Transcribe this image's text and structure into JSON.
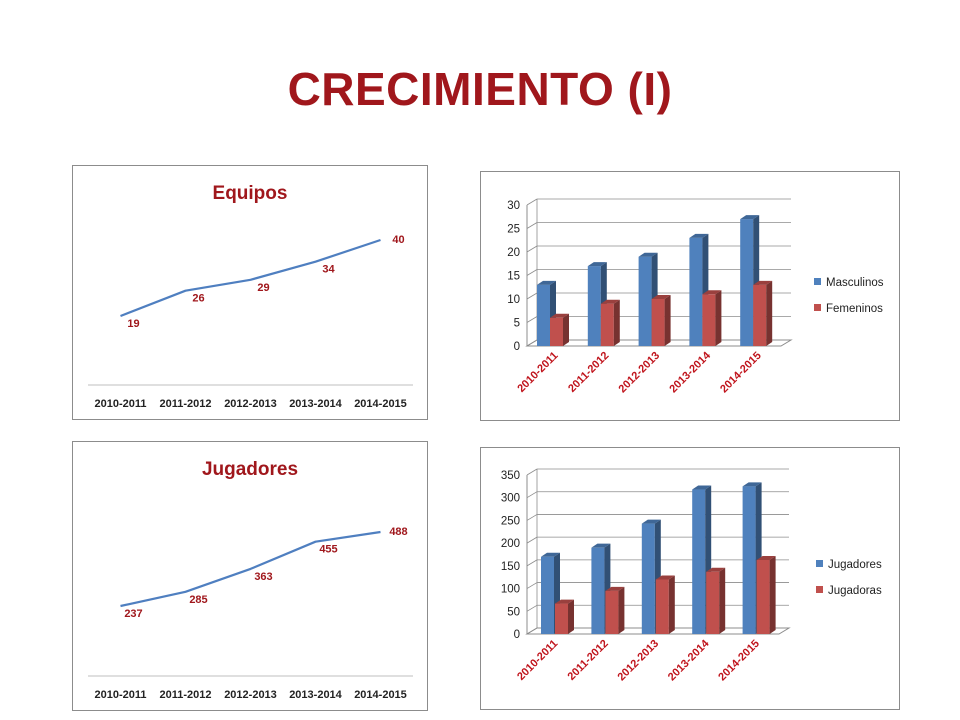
{
  "slide": {
    "title": "CRECIMIENTO (I)"
  },
  "colors": {
    "title": "#a0171c",
    "line": "#4f7fc0",
    "blue": "#4f81bd",
    "red": "#c0504d",
    "label_red": "#a0171c"
  },
  "chart_data": [
    {
      "id": "equipos",
      "type": "line",
      "title": "Equipos",
      "categories": [
        "2010-2011",
        "2011-2012",
        "2012-2013",
        "2013-2014",
        "2014-2015"
      ],
      "values": [
        19,
        26,
        29,
        34,
        40
      ],
      "data_labels": [
        "19",
        "26",
        "29",
        "34",
        "40"
      ],
      "grid": false
    },
    {
      "id": "equipos-gender",
      "type": "bar",
      "title": "",
      "categories": [
        "2010-2011",
        "2011-2012",
        "2012-2013",
        "2013-2014",
        "2014-2015"
      ],
      "series": [
        {
          "name": "Masculinos",
          "values": [
            13,
            17,
            19,
            23,
            27
          ]
        },
        {
          "name": "Femeninos",
          "values": [
            6,
            9,
            10,
            11,
            13
          ]
        }
      ],
      "ylim": [
        0,
        30
      ],
      "yticks": [
        "0",
        "5",
        "10",
        "15",
        "20",
        "25",
        "30"
      ],
      "grid": true,
      "legend": "right"
    },
    {
      "id": "jugadores",
      "type": "line",
      "title": "Jugadores",
      "categories": [
        "2010-2011",
        "2011-2012",
        "2012-2013",
        "2013-2014",
        "2014-2015"
      ],
      "values": [
        237,
        285,
        363,
        455,
        488
      ],
      "data_labels": [
        "237",
        "285",
        "363",
        "455",
        "488"
      ],
      "grid": false
    },
    {
      "id": "jugadores-gender",
      "type": "bar",
      "title": "",
      "categories": [
        "2010-2011",
        "2011-2012",
        "2012-2013",
        "2013-2014",
        "2014-2015"
      ],
      "series": [
        {
          "name": "Jugadores",
          "values": [
            170,
            190,
            243,
            318,
            325
          ]
        },
        {
          "name": "Jugadoras",
          "values": [
            67,
            95,
            120,
            137,
            163
          ]
        }
      ],
      "ylim": [
        0,
        350
      ],
      "yticks": [
        "0",
        "50",
        "100",
        "150",
        "200",
        "250",
        "300",
        "350"
      ],
      "grid": true,
      "legend": "right"
    }
  ]
}
